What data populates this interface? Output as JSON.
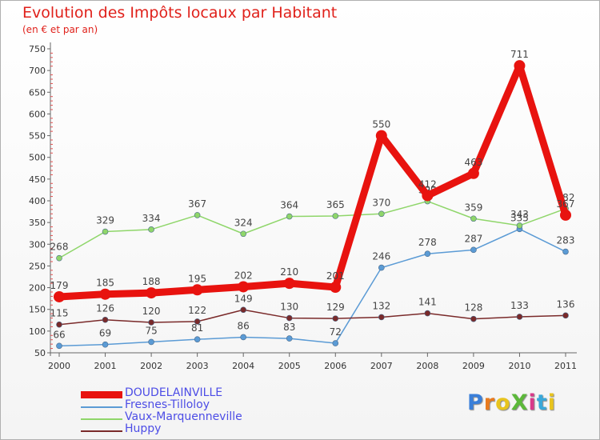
{
  "chart_data": {
    "type": "line",
    "title": "Evolution des Impôts locaux par Habitant",
    "subtitle": "(en € et par an)",
    "xlabel": "",
    "ylabel": "",
    "x": [
      "2000",
      "2001",
      "2002",
      "2003",
      "2004",
      "2005",
      "2006",
      "2007",
      "2008",
      "2009",
      "2010",
      "2011"
    ],
    "ylim": [
      50,
      750
    ],
    "yticks": [
      50,
      100,
      150,
      200,
      250,
      300,
      350,
      400,
      450,
      500,
      550,
      600,
      650,
      700,
      750
    ],
    "grid": false,
    "legend_position": "bottom-left",
    "series": [
      {
        "name": "DOUDELAINVILLE",
        "color": "#e8130f",
        "values": [
          179,
          185,
          188,
          195,
          202,
          210,
          201,
          550,
          412,
          463,
          711,
          367
        ],
        "labels": [
          "179",
          "185",
          "188",
          "195",
          "202",
          "210",
          "201",
          "550",
          "412",
          "463",
          "711",
          "367"
        ]
      },
      {
        "name": "Fresnes-Tilloloy",
        "color": "#5b9bd5",
        "values": [
          66,
          69,
          75,
          81,
          86,
          83,
          72,
          246,
          278,
          287,
          335,
          283
        ],
        "labels": [
          "66",
          "69",
          "75",
          "81",
          "86",
          "83",
          "72",
          "246",
          "278",
          "287",
          "335",
          "283"
        ]
      },
      {
        "name": "Vaux-Marquenneville",
        "color": "#8fd66a",
        "values": [
          268,
          329,
          334,
          367,
          324,
          364,
          365,
          370,
          399,
          359,
          343,
          382
        ],
        "labels": [
          "268",
          "329",
          "334",
          "367",
          "324",
          "364",
          "365",
          "370",
          "399",
          "359",
          "343",
          "382"
        ]
      },
      {
        "name": "Huppy",
        "color": "#7a2a2a",
        "values": [
          115,
          126,
          120,
          122,
          149,
          130,
          129,
          132,
          141,
          128,
          133,
          136
        ],
        "labels": [
          "115",
          "126",
          "120",
          "122",
          "149",
          "130",
          "129",
          "132",
          "141",
          "128",
          "133",
          "136"
        ]
      }
    ]
  },
  "logo": {
    "text": "ProXiti",
    "colors": [
      "#3a7fd9",
      "#e87a1e",
      "#e8c41e",
      "#5cb83a",
      "#d93a8a",
      "#3aa8d9",
      "#e8c41e"
    ]
  }
}
